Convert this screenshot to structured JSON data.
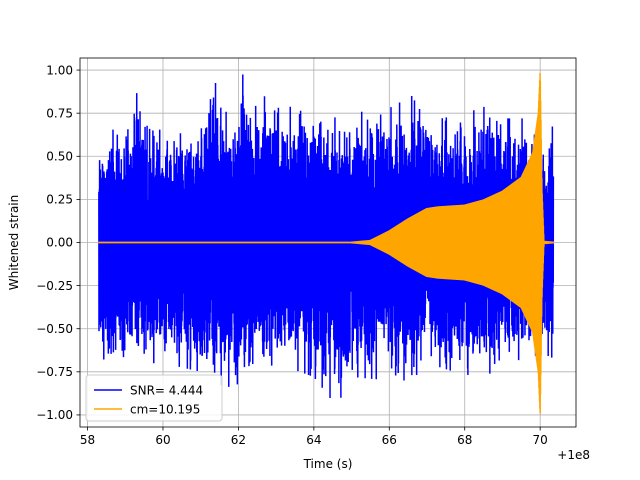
{
  "chart_data": {
    "type": "line",
    "title": "",
    "xlabel": "Time (s)",
    "ylabel": "Whitened strain",
    "x_offset_label": "+1e8",
    "xlim": [
      57.8,
      70.95
    ],
    "ylim": [
      -1.07,
      1.07
    ],
    "x_ticks": [
      58,
      60,
      62,
      64,
      66,
      68,
      70
    ],
    "x_tick_labels": [
      "58",
      "60",
      "62",
      "64",
      "66",
      "68",
      "70"
    ],
    "y_ticks": [
      -1.0,
      -0.75,
      -0.5,
      -0.25,
      0.0,
      0.25,
      0.5,
      0.75,
      1.0
    ],
    "y_tick_labels": [
      "−1.00",
      "−0.75",
      "−0.50",
      "−0.25",
      "0.00",
      "0.25",
      "0.50",
      "0.75",
      "1.00"
    ],
    "grid": true,
    "legend_position": "lower-left",
    "series": [
      {
        "name": "SNR= 4.444",
        "color": "#0000ff",
        "x_range": [
          58.3,
          70.35
        ],
        "envelope": {
          "x": [
            58.3,
            58.5,
            59.0,
            59.3,
            60.0,
            61.0,
            61.4,
            61.8,
            62.0,
            63.0,
            64.0,
            64.6,
            65.0,
            66.0,
            66.6,
            67.0,
            68.0,
            68.7,
            69.0,
            69.6,
            70.05,
            70.1,
            70.3,
            70.35
          ],
          "upper": [
            0.55,
            0.63,
            0.7,
            0.9,
            0.62,
            0.65,
            0.93,
            0.8,
            1.0,
            0.78,
            0.8,
            0.72,
            0.75,
            0.78,
            0.85,
            0.7,
            0.75,
            0.8,
            0.72,
            0.72,
            0.55,
            0.6,
            0.7,
            0.65
          ],
          "lower": [
            -0.6,
            -0.72,
            -0.7,
            -0.7,
            -0.7,
            -0.75,
            -0.82,
            -0.84,
            -0.82,
            -0.7,
            -0.78,
            -0.95,
            -0.78,
            -0.8,
            -0.8,
            -0.7,
            -0.77,
            -0.76,
            -0.73,
            -0.75,
            -0.6,
            -0.65,
            -0.72,
            -0.7
          ]
        }
      },
      {
        "name": "cm=10.195",
        "color": "#ffa500",
        "x_range": [
          58.3,
          70.35
        ],
        "envelope": {
          "x": [
            58.3,
            65.0,
            65.5,
            66.0,
            66.5,
            67.0,
            67.3,
            68.0,
            68.5,
            69.0,
            69.5,
            69.8,
            69.95,
            70.0,
            70.05,
            70.1,
            70.35
          ],
          "amplitude": [
            0.005,
            0.005,
            0.015,
            0.07,
            0.14,
            0.2,
            0.21,
            0.22,
            0.25,
            0.3,
            0.38,
            0.52,
            0.75,
            1.0,
            0.3,
            0.01,
            0.005
          ]
        }
      }
    ]
  }
}
